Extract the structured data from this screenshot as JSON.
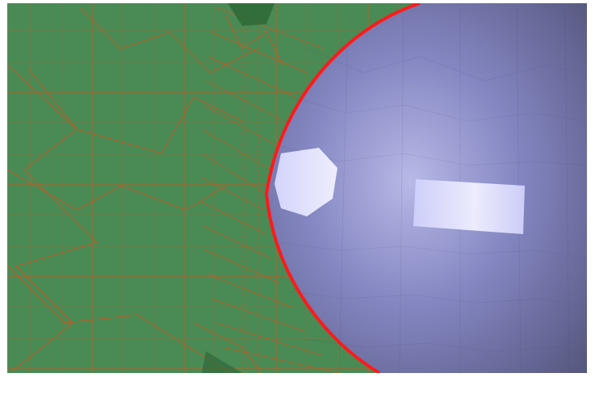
{
  "scene": {
    "description_visible_text": "",
    "colors": {
      "background": "#ffffff",
      "ground_mesh_fill": "#4a8a55",
      "mesh_wire": "#d0571f",
      "boundary_highlight": "#ff1a1a",
      "sphere_base": "#7a7cb8",
      "sphere_highlight": "#e8e8ff"
    }
  }
}
